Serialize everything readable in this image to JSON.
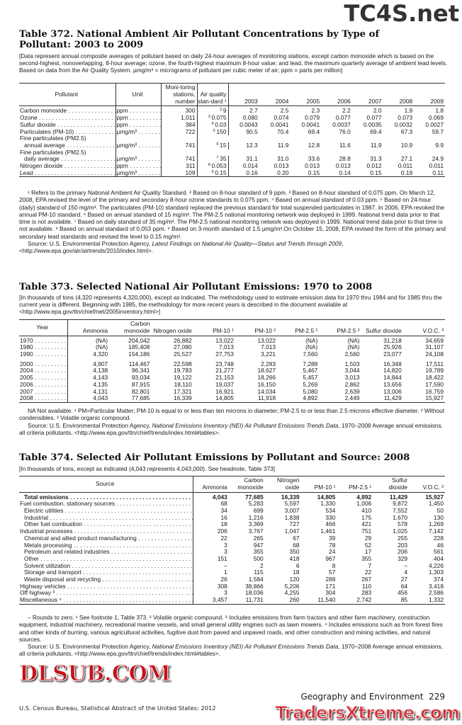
{
  "watermarks": {
    "top": "TC4S.net",
    "middle": "DLSUB.COM",
    "bottom": "TradersXtreme.com"
  },
  "t372": {
    "title": "Table 372. National Ambient Air Pollutant Concentrations by Type of Pollutant: 2003 to 2009",
    "headnote": "[Data represent annual composite averages of pollutant based on daily 24-hour averages of monitoring stations, except carbon monoxide which is based on the second-highest, nonoverlapping, 8-hour average; ozone, the fourth-highest maximum 8-hour value; and lead, the maximum quarterly average of ambient lead levels. Based on data from the Air Quality System. µmg/m³ = micrograms of pollutant per cubic meter of air; ppm = parts per million]",
    "headers": [
      "Pollutant",
      "Unit",
      "Moni-toring stations, number",
      "Air quality stan-dard ¹",
      "2003",
      "2004",
      "2005",
      "2006",
      "2007",
      "2008",
      "2009"
    ],
    "rows": [
      {
        "label": "Carbon monoxide",
        "unit": "ppm",
        "stations": "300",
        "std_note": "2",
        "std": "9",
        "values": [
          "2.7",
          "2.5",
          "2.3",
          "2.2",
          "2.0",
          "1.9",
          "1.8"
        ]
      },
      {
        "label": "Ozone",
        "unit": "ppm",
        "stations": "1,011",
        "std_note": "3",
        "std": "0.075",
        "values": [
          "0.080",
          "0.074",
          "0.079",
          "0.077",
          "0.077",
          "0.073",
          "0.069"
        ]
      },
      {
        "label": "Sulfur dioxide",
        "unit": "ppm",
        "stations": "384",
        "std_note": "4",
        "std": "0.03",
        "values": [
          "0.0043",
          "0.0041",
          "0.0041",
          "0.0037",
          "0.0035",
          "0.0032",
          "0.0027"
        ]
      },
      {
        "label": "Particulates (PM-10)",
        "unit": "µmg/m³",
        "stations": "722",
        "std_note": "5",
        "std": "150",
        "values": [
          "90.5",
          "70.4",
          "69.4",
          "76.0",
          "69.4",
          "67.3",
          "59.7"
        ]
      },
      {
        "pre": "Fine particulates (PM2.5)",
        "label": "annual average",
        "unit": "µmg/m³",
        "stations": "741",
        "std_note": "6",
        "std": "15",
        "values": [
          "12.3",
          "11.9",
          "12.8",
          "11.6",
          "11.9",
          "10.9",
          "9.9"
        ]
      },
      {
        "pre": "Fine particulates (PM2.5)",
        "label": "daily average",
        "unit": "µmg/m³",
        "stations": "741",
        "std_note": "7",
        "std": "35",
        "values": [
          "31.1",
          "31.0",
          "33.6",
          "28.8",
          "31.3",
          "27.1",
          "24.9"
        ]
      },
      {
        "label": "Nitrogen dioxide",
        "unit": "ppm",
        "stations": "311",
        "std_note": "8",
        "std": "0.053",
        "values": [
          "0.014",
          "0.013",
          "0.013",
          "0.013",
          "0.012",
          "0.011",
          "0.011"
        ]
      },
      {
        "label": "Lead",
        "unit": "µmg/m³",
        "stations": "109",
        "std_note": "9",
        "std": "0.15",
        "values": [
          "0.16",
          "0.20",
          "0.15",
          "0.14",
          "0.15",
          "0.19",
          "0.11"
        ]
      }
    ],
    "footnotes": "¹ Refers to the primary National Ambient Air Quality Standard. ² Based on 8-hour standard of 9 ppm. ³ Based on 8-hour standard of 0.075 ppm. On March 12, 2008, EPA revised the level of the primary and secondary 8-hour ozone standards to 0.075 ppm. ⁴ Based on annual standard of 0.03 ppm. ⁵ Based on 24-hour (daily) standard of 150 mg/m³. The particulates (PM-10) standard replaced the previous standard for total suspended particulates in 1987. In 2006, EPA revoked the annual PM-10 standard. ⁶ Based on annual standard of 15 mg/m³. The PM-2.5 national monitoring network was deployed in 1999. National trend data prior to that time is not available. ⁷ Based on daily standard of 35 mg/m³. The PM-2.5 national monitoring network was deployed in 1999. National trend data prior to that time is not available. ⁸ Based on annual standard of 0.053 ppm. ⁹ Based on 3-month standard of 1.5 µmg/m³.On October 15, 2008, EPA revised the form of the primary and secondary lead standards and revised the level to 0.15 mg/m³.",
    "source_prefix": "Source: U.S. Environmental Protection Agency, ",
    "source_title": "Latest Findings on National Air Quality—Status and Trends through 2009",
    "source_suffix": ", <http://www.epa.gov/air/airtrends/2010/index.html>."
  },
  "t373": {
    "title": "Table 373. Selected National Air Pollutant Emissions: 1970 to 2008",
    "headnote": "[In thousands of tons (4,320 represents 4,320,000), except as indicated. The methodology used to estimate emission data for 1970 thru 1984 and for 1985 thru the current year is different. Beginning with 1985, the methodology for more recent years is described in the document available at <http://www.epa.gov/ttn/chief/net/2005inventory.html>]",
    "headers": [
      "Year",
      "Ammonia",
      "Carbon monoxide",
      "Nitrogen oxide",
      "PM-10 ¹",
      "PM-10 ²",
      "PM-2.5 ¹",
      "PM-2.5 ²",
      "Sulfur dioxide",
      "V.O.C. ³"
    ],
    "rows": [
      {
        "year": "1970",
        "values": [
          "(NA)",
          "204,042",
          "26,882",
          "13,022",
          "13,022",
          "(NA)",
          "(NA)",
          "31,218",
          "34,659"
        ]
      },
      {
        "year": "1980",
        "values": [
          "(NA)",
          "185,408",
          "27,080",
          "7,013",
          "7,013",
          "(NA)",
          "(NA)",
          "25,926",
          "31,107"
        ]
      },
      {
        "year": "1990",
        "values": [
          "4,320",
          "154,186",
          "25,527",
          "27,753",
          "3,221",
          "7,560",
          "2,560",
          "23,077",
          "24,108"
        ]
      },
      {
        "year": "2000",
        "values": [
          "4,907",
          "114,467",
          "22,598",
          "23,748",
          "2,283",
          "7,288",
          "1,503",
          "16,348",
          "17,511"
        ]
      },
      {
        "year": "2004",
        "values": [
          "4,138",
          "96,341",
          "19,783",
          "21,277",
          "18,627",
          "5,467",
          "3,044",
          "14,820",
          "19,789"
        ]
      },
      {
        "year": "2005",
        "values": [
          "4,143",
          "93,034",
          "19,122",
          "21,153",
          "18,266",
          "5,457",
          "3,013",
          "14,844",
          "18,422"
        ]
      },
      {
        "year": "2006",
        "values": [
          "4,135",
          "87,915",
          "18,110",
          "19,037",
          "16,150",
          "5,269",
          "2,862",
          "13,656",
          "17,590"
        ]
      },
      {
        "year": "2007",
        "values": [
          "4,131",
          "82,801",
          "17,321",
          "16,921",
          "14,034",
          "5,080",
          "2,639",
          "13,006",
          "16,759"
        ]
      },
      {
        "year": "2008",
        "values": [
          "4,043",
          "77,685",
          "16,339",
          "14,805",
          "11,918",
          "4,892",
          "2,449",
          "11,429",
          "15,927"
        ]
      }
    ],
    "footnotes": "NA Not available. ¹ PM=Particular Matter; PM-10 is equal to or less than ten microns in diameter; PM-2.5 to or less than 2.5 microns effective diameter. ² Without condensibles. ³ Volatile organic compound.",
    "source_prefix": "Source: U.S. Environmental Protection Agency, ",
    "source_title": "National Emissions Inventory (NEI) Air Pollutant Emissions Trends Data",
    "source_suffix": ", 1970–2008 Average annual emissions, all criteria pollutants, <http://www.epa.gov/ttn/chief/trends/index.html#tables>."
  },
  "t374": {
    "title": "Table 374. Selected Air Pollutant Emissions by Pollutant and Source: 2008",
    "headnote": "[In thousands of tons, except as indicated (4,043 represents 4,043,000). See headnote, Table 373]",
    "headers": [
      "Source",
      "Ammonia",
      "Carbon monoxide",
      "Nitrogen oxide",
      "PM-10 ¹",
      "PM-2.5 ¹",
      "Sulfur dioxide",
      "V.O.C. ²"
    ],
    "rows": [
      {
        "label": "Total emissions",
        "level": "total",
        "values": [
          "4,043",
          "77,685",
          "16,339",
          "14,805",
          "4,892",
          "11,429",
          "15,927"
        ]
      },
      {
        "label": "Fuel combustion, stationary sources",
        "level": "0",
        "values": [
          "68",
          "5,283",
          "5,597",
          "1,330",
          "1,006",
          "9,872",
          "1,450"
        ]
      },
      {
        "label": "Electric utilities",
        "level": "1",
        "values": [
          "34",
          "699",
          "3,007",
          "534",
          "410",
          "7,552",
          "50"
        ]
      },
      {
        "label": "Industrial",
        "level": "1",
        "values": [
          "16",
          "1,216",
          "1,838",
          "330",
          "175",
          "1,670",
          "130"
        ]
      },
      {
        "label": "Other fuel combustion",
        "level": "1",
        "values": [
          "18",
          "3,369",
          "727",
          "466",
          "421",
          "578",
          "1,269"
        ]
      },
      {
        "label": "Industrial processes",
        "level": "0",
        "values": [
          "206",
          "3,767",
          "1,047",
          "1,461",
          "751",
          "1,025",
          "7,142"
        ]
      },
      {
        "label": "Chemical and allied product manufacturing",
        "level": "1",
        "values": [
          "22",
          "265",
          "67",
          "39",
          "29",
          "255",
          "228"
        ]
      },
      {
        "label": "Metals processing",
        "level": "1",
        "values": [
          "3",
          "947",
          "68",
          "78",
          "52",
          "203",
          "46"
        ]
      },
      {
        "label": "Petroleum and related industries",
        "level": "1",
        "values": [
          "3",
          "355",
          "350",
          "24",
          "17",
          "206",
          "561"
        ]
      },
      {
        "label": "Other",
        "level": "1",
        "values": [
          "151",
          "500",
          "418",
          "967",
          "355",
          "329",
          "404"
        ]
      },
      {
        "label": "Solvent utilization",
        "level": "1",
        "values": [
          "–",
          "2",
          "6",
          "8",
          "7",
          "–",
          "4,226"
        ]
      },
      {
        "label": "Storage and transport",
        "level": "1",
        "values": [
          "1",
          "115",
          "18",
          "57",
          "22",
          "4",
          "1,303"
        ]
      },
      {
        "label": "Waste disposal and recycling",
        "level": "1",
        "values": [
          "26",
          "1,584",
          "120",
          "288",
          "267",
          "27",
          "374"
        ]
      },
      {
        "label": "Highway vehicles",
        "level": "0",
        "values": [
          "308",
          "38,866",
          "5,206",
          "171",
          "110",
          "64",
          "3,418"
        ]
      },
      {
        "label": "Off highway ³",
        "level": "0",
        "values": [
          "3",
          "18,036",
          "4,255",
          "304",
          "283",
          "456",
          "2,586"
        ]
      },
      {
        "label": "Miscellaneous ⁴",
        "level": "0",
        "values": [
          "3,457",
          "11,731",
          "260",
          "11,540",
          "2,742",
          "85",
          "1,332"
        ]
      }
    ],
    "footnotes": "– Rounds to zero. ¹ See footnote 1, Table 373. ² Volatile organic compound. ³ Includes emissions from farm tractors and other farm machinery, construction equipment, industrial machinery, recreational marine vessels, and small general utility engines such as lawn mowers. ⁴ Includes emissions such as from forest fires and other kinds of burning, various agricultural activities, fugitive dust from paved and unpaved roads, and other construction and mining activities, and natural sources.",
    "source_prefix": "Source: U.S. Environmental Protection Agency, ",
    "source_title": "National Emissions Inventory (NEI) Air Pollutant Emissions Trends Data",
    "source_suffix": ", 1970–2008 Average annual emissions, all criteria pollutants, <http://www.epa.gov/ttn/chief/trends/index.html#tables>."
  },
  "footer": {
    "section": "Geography and Environment",
    "page": "229",
    "publication": "U.S. Census Bureau, Statistical Abstract of the United States: 2012"
  }
}
